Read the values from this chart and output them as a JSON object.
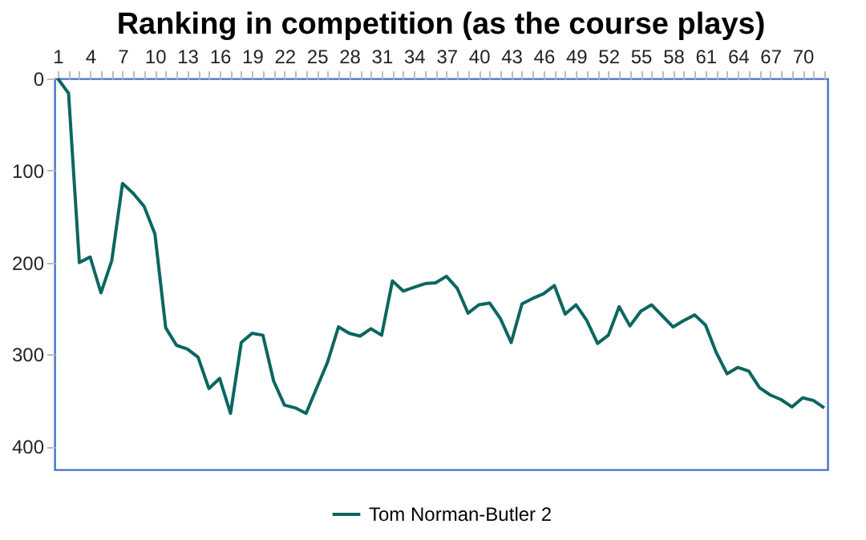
{
  "chart_data": {
    "type": "line",
    "title": "Ranking in competition (as the course plays)",
    "categories": [
      "1",
      null,
      null,
      "4",
      null,
      null,
      "7",
      null,
      null,
      "10",
      null,
      null,
      "13",
      null,
      null,
      "16",
      null,
      null,
      "19",
      null,
      null,
      "22",
      null,
      null,
      "25",
      null,
      null,
      "28",
      null,
      null,
      "31",
      null,
      null,
      "34",
      null,
      null,
      "37",
      null,
      null,
      "40",
      null,
      null,
      "43",
      null,
      null,
      "46",
      null,
      null,
      "49",
      null,
      null,
      "52",
      null,
      null,
      "55",
      null,
      null,
      "58",
      null,
      null,
      "61",
      null,
      null,
      "64",
      null,
      null,
      "67",
      null,
      null,
      "70",
      null,
      null
    ],
    "series": [
      {
        "name": "Tom Norman-Butler 2",
        "color": "#0b6660",
        "values": [
          0,
          16,
          200,
          194,
          233,
          198,
          114,
          125,
          139,
          169,
          271,
          290,
          294,
          303,
          337,
          326,
          364,
          287,
          277,
          279,
          329,
          355,
          358,
          364,
          336,
          308,
          270,
          277,
          280,
          272,
          279,
          220,
          231,
          227,
          223,
          222,
          215,
          228,
          255,
          246,
          244,
          261,
          287,
          245,
          239,
          234,
          225,
          256,
          246,
          263,
          288,
          279,
          248,
          269,
          253,
          246,
          258,
          270,
          263,
          257,
          268,
          298,
          321,
          314,
          318,
          336,
          344,
          349,
          357,
          347,
          350,
          358
        ]
      }
    ],
    "ylim": [
      425,
      0
    ],
    "yticks": [
      0,
      100,
      200,
      300,
      400
    ],
    "grid": false,
    "legend": "bottom",
    "marker": "none",
    "line_style": "solid"
  }
}
